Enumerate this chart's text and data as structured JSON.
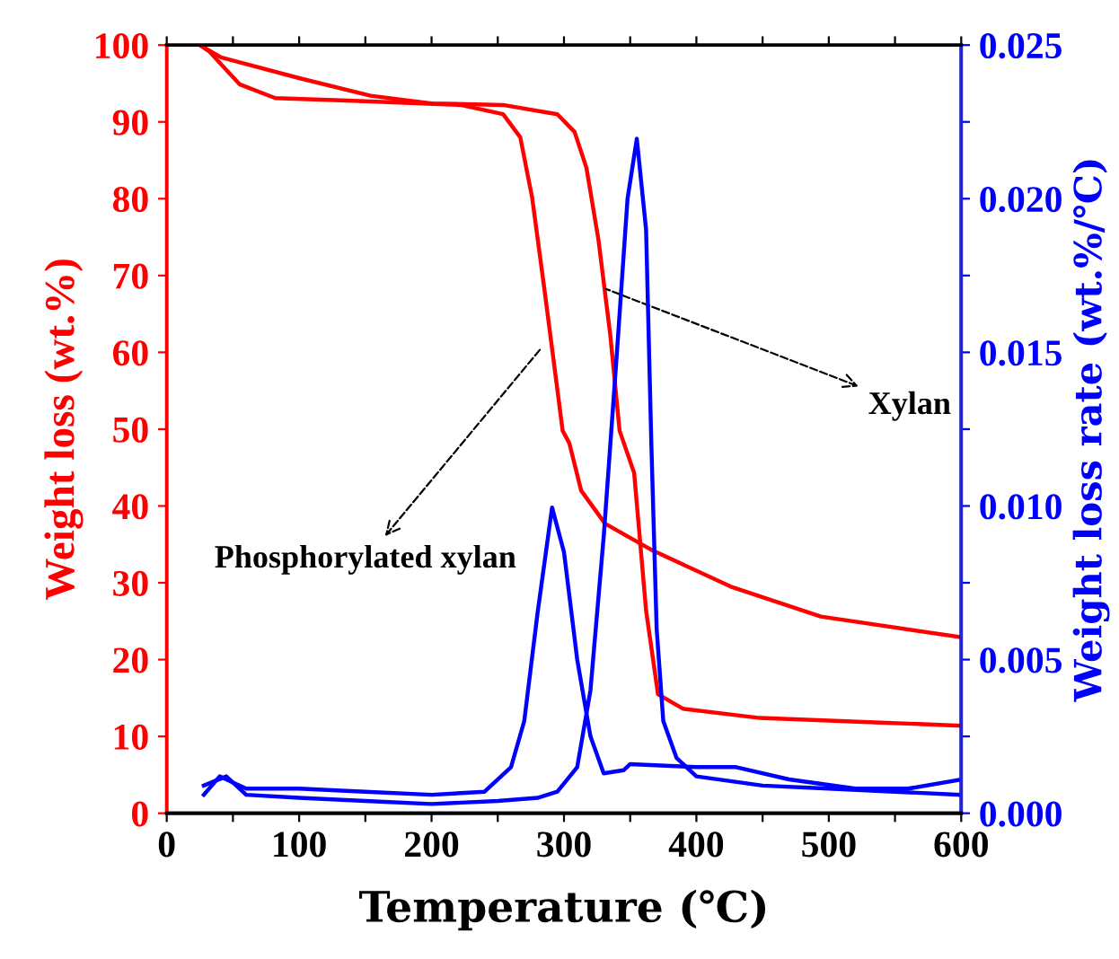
{
  "chart_data": {
    "type": "line",
    "xlabel": "Temperature (℃)",
    "ylabel": "Weight loss (wt.%)",
    "y2label": "Weight loss rate (wt.%/℃)",
    "xlim": [
      0,
      600
    ],
    "xticks": [
      0,
      {
        "value": 50,
        "label": null
      },
      100,
      {
        "value": 150,
        "label": null
      },
      200,
      {
        "value": 250,
        "label": null
      },
      300,
      {
        "value": 350,
        "label": null
      },
      400,
      {
        "value": 450,
        "label": null
      },
      500,
      {
        "value": 550,
        "label": null
      },
      600
    ],
    "ylim": [
      0,
      100
    ],
    "yticks": [
      0,
      10,
      20,
      30,
      40,
      50,
      60,
      70,
      80,
      90,
      100
    ],
    "y2lim": [
      0,
      0.025
    ],
    "y2ticks": [
      {
        "value": 0,
        "label": "0.000"
      },
      {
        "value": 0.0025,
        "label": null
      },
      0.005,
      {
        "value": 0.0075,
        "label": null
      },
      {
        "value": 0.01,
        "label": "0.010"
      },
      {
        "value": 0.0125,
        "label": null
      },
      0.015,
      {
        "value": 0.0175,
        "label": null
      },
      {
        "value": 0.02,
        "label": "0.020"
      },
      {
        "value": 0.0225,
        "label": null
      },
      0.025
    ],
    "grid": false,
    "legend": false,
    "line_style": "solid",
    "marker": "none",
    "series": [
      {
        "color": "#ff0000",
        "x": [
          25,
          41,
          100,
          154,
          200,
          254,
          295,
          308,
          317,
          326,
          335,
          342,
          353,
          362,
          371,
          390,
          448,
          539,
          600
        ],
        "values": [
          100,
          98.4,
          95.7,
          93.4,
          92.4,
          92.2,
          91.0,
          88.7,
          84.0,
          74.7,
          62.2,
          49.8,
          44.3,
          26.4,
          15.5,
          13.6,
          12.4,
          11.8,
          11.4
        ]
      },
      {
        "color": "#ff0000",
        "x": [
          25,
          32,
          55,
          82,
          132,
          222,
          254,
          267,
          276,
          285,
          299,
          304,
          313,
          331,
          367,
          426,
          494,
          600
        ],
        "values": [
          100,
          99.2,
          94.9,
          93.1,
          92.8,
          92.2,
          91.0,
          88.0,
          80.1,
          68.5,
          49.8,
          48.2,
          42.0,
          37.7,
          34.2,
          29.5,
          25.6,
          22.9
        ]
      },
      {
        "color": "#0000ff",
        "axis": "y2",
        "x": [
          28,
          45,
          60,
          100,
          150,
          200,
          250,
          280,
          295,
          310,
          320,
          330,
          340,
          348,
          355,
          362,
          366,
          370,
          375,
          385,
          400,
          450,
          500,
          550,
          600
        ],
        "values": [
          0.0009,
          0.0012,
          0.0006,
          0.0005,
          0.0004,
          0.0003,
          0.0004,
          0.0005,
          0.0007,
          0.0015,
          0.004,
          0.009,
          0.015,
          0.02,
          0.02195,
          0.019,
          0.012,
          0.006,
          0.003,
          0.0018,
          0.0012,
          0.0009,
          0.0008,
          0.0007,
          0.0006
        ]
      },
      {
        "color": "#0000ff",
        "axis": "y2",
        "x": [
          28,
          40,
          50,
          60,
          100,
          150,
          200,
          240,
          260,
          270,
          280,
          291,
          300,
          310,
          320,
          330,
          345,
          350,
          400,
          430,
          470,
          520,
          560,
          600
        ],
        "values": [
          0.0006,
          0.0012,
          0.001,
          0.0008,
          0.0008,
          0.0007,
          0.0006,
          0.0007,
          0.0015,
          0.003,
          0.0065,
          0.00995,
          0.0085,
          0.005,
          0.0025,
          0.0013,
          0.0014,
          0.0016,
          0.0015,
          0.0015,
          0.0011,
          0.0008,
          0.0008,
          0.0011
        ]
      }
    ],
    "annotations": [
      {
        "text": "Xylan",
        "x": 328,
        "y": 68.5
      },
      {
        "text": "Phosphorylated xylan",
        "x": 285,
        "y": 61
      }
    ]
  }
}
